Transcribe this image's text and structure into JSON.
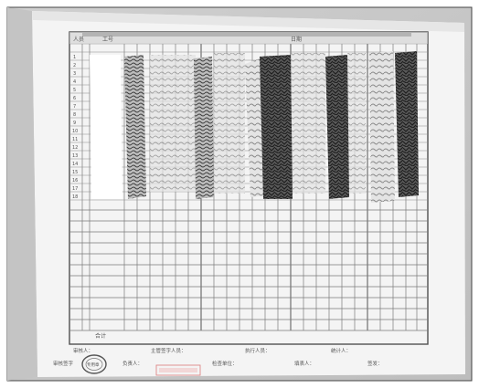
{
  "form": {
    "header_cells": [
      "人员",
      "工号",
      "日期"
    ],
    "footer_row_label": "合计",
    "footer_fields": [
      "审核人：",
      "主管签字人员：",
      "执行人员：",
      "统计人："
    ],
    "bottom_fields": [
      "审核签字",
      "负责人：",
      "检查单位：",
      "填表人：",
      "签发："
    ],
    "stamp_text": "专用章"
  }
}
